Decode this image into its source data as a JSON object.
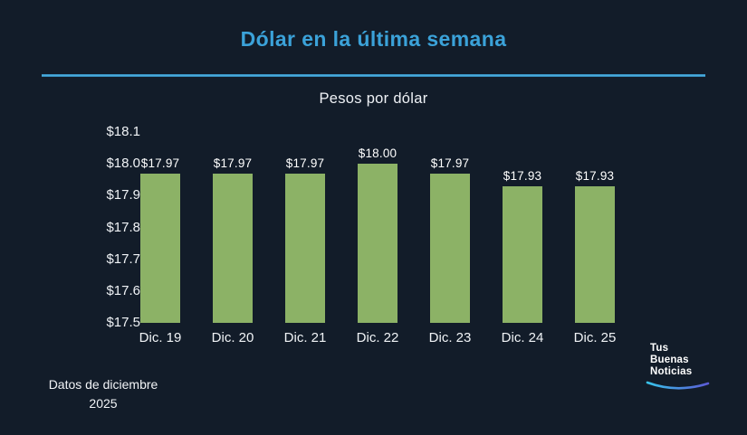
{
  "page": {
    "background_color": "#121c29",
    "accent_color": "#3ba2d9"
  },
  "header": {
    "title": "Dólar en la última semana"
  },
  "chart_data": {
    "type": "bar",
    "title": "Pesos por dólar",
    "categories": [
      "Dic. 19",
      "Dic. 20",
      "Dic. 21",
      "Dic. 22",
      "Dic. 23",
      "Dic. 24",
      "Dic. 25"
    ],
    "values": [
      17.97,
      17.97,
      17.97,
      18.0,
      17.97,
      17.93,
      17.93
    ],
    "value_labels": [
      "$17.97",
      "$17.97",
      "$17.97",
      "$18.00",
      "$17.97",
      "$17.93",
      "$17.93"
    ],
    "y_ticks": [
      "$18.1",
      "$18.0",
      "$17.9",
      "$17.8",
      "$17.7",
      "$17.6",
      "$17.5"
    ],
    "ylim": [
      17.5,
      18.1
    ],
    "xlabel": "",
    "ylabel": "Pesos por dólar",
    "bar_color": "#8cb266",
    "grid": false,
    "legend": false
  },
  "footer": {
    "note_line1": "Datos de diciembre",
    "note_line2": "2025"
  },
  "logo": {
    "line1": "Tus",
    "line2": "Buenas",
    "line3": "Noticias",
    "swoosh_color_start": "#38c3ea",
    "swoosh_color_end": "#5b5bd6"
  }
}
